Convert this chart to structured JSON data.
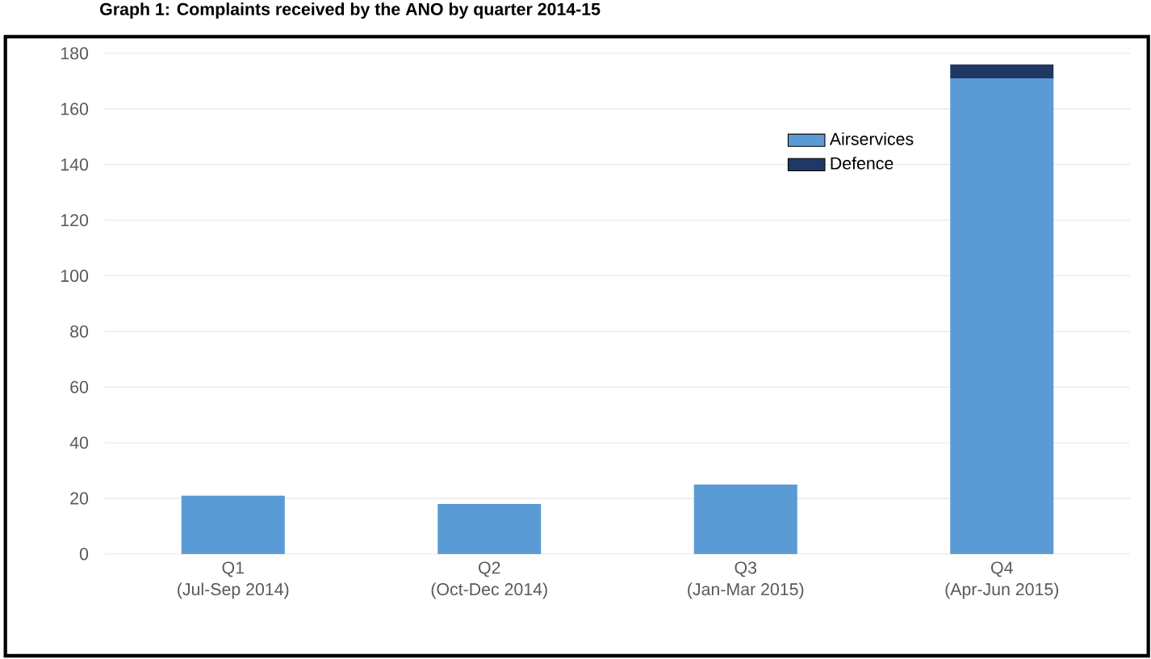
{
  "chart_data": {
    "type": "bar",
    "stacked": true,
    "title": "Graph 1: Complaints received by the ANO by quarter 2014-15",
    "categories": [
      "Q1\n(Jul-Sep 2014)",
      "Q2\n(Oct-Dec 2014)",
      "Q3\n(Jan-Mar 2015)",
      "Q4\n(Apr-Jun 2015)"
    ],
    "series": [
      {
        "name": "Airservices",
        "color": "#5b9bd5",
        "values": [
          21,
          18,
          25,
          171
        ]
      },
      {
        "name": "Defence",
        "color": "#1f3864",
        "values": [
          0,
          0,
          0,
          5
        ]
      }
    ],
    "ylim": [
      0,
      180
    ],
    "yticks": [
      0,
      20,
      40,
      60,
      80,
      100,
      120,
      140,
      160,
      180
    ],
    "grid": "y",
    "legend": "top right"
  }
}
